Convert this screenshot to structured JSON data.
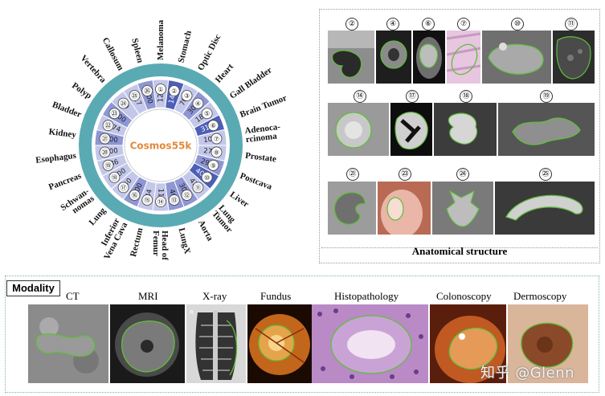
{
  "wheel": {
    "center_label": "Cosmos55k",
    "colors": {
      "ring": "#5aaab4",
      "dark": "#4d5fb7",
      "mid": "#8e96d3",
      "light": "#c3c7ea",
      "center_text": "#e28a3a"
    },
    "segments": [
      {
        "num": "①",
        "name": "Melanoma",
        "count": "1213",
        "shade": "light"
      },
      {
        "num": "②",
        "name": "Stomach",
        "count": "1400",
        "shade": "dark"
      },
      {
        "num": "③",
        "name": "Optic Disc",
        "count": "709",
        "shade": "light"
      },
      {
        "num": "④",
        "name": "Heart",
        "count": "3000",
        "shade": "mid"
      },
      {
        "num": "⑤",
        "name": "Gall Bladder",
        "count": "1874",
        "shade": "light"
      },
      {
        "num": "⑥",
        "name": "Brain Tumor",
        "count": "3100",
        "shade": "dark"
      },
      {
        "num": "⑦",
        "name": "Adenoca-\nrcinoma",
        "count": "1019",
        "shade": "light"
      },
      {
        "num": "⑧",
        "name": "Prostate",
        "count": "2747",
        "shade": "light"
      },
      {
        "num": "⑨",
        "name": "Postcava",
        "count": "2956",
        "shade": "mid"
      },
      {
        "num": "⑩",
        "name": "Liver",
        "count": "4000",
        "shade": "dark"
      },
      {
        "num": "⑪",
        "name": "Lung\nTumor",
        "count": "434",
        "shade": "light"
      },
      {
        "num": "⑫",
        "name": "Aorta",
        "count": "3000",
        "shade": "mid"
      },
      {
        "num": "⑬",
        "name": "LungX",
        "count": "465",
        "shade": "mid"
      },
      {
        "num": "⑭",
        "name": "Head of\nFemur",
        "count": "1195",
        "shade": "light"
      },
      {
        "num": "⑮",
        "name": "Rectum",
        "count": "884",
        "shade": "light"
      },
      {
        "num": "⑯",
        "name": "Inferior\nVena Cava",
        "count": "3000",
        "shade": "mid"
      },
      {
        "num": "⑰",
        "name": "Lung",
        "count": "550",
        "shade": "light"
      },
      {
        "num": "⑱",
        "name": "Schwan-\nnomas",
        "count": "3100",
        "shade": "light"
      },
      {
        "num": "⑲",
        "name": "Pancreas",
        "count": "286",
        "shade": "light"
      },
      {
        "num": "⑳",
        "name": "Esophagus",
        "count": "3100",
        "shade": "light"
      },
      {
        "num": "㉑",
        "name": "Kidney",
        "count": "3000",
        "shade": "mid"
      },
      {
        "num": "㉒",
        "name": "Bladder",
        "count": "2174",
        "shade": "light"
      },
      {
        "num": "㉓",
        "name": "Polyp",
        "count": "1000",
        "shade": "mid"
      },
      {
        "num": "㉔",
        "name": "Vertebra",
        "count": "9",
        "shade": "light"
      },
      {
        "num": "㉕",
        "name": "Callosum",
        "count": "117",
        "shade": "light"
      },
      {
        "num": "㉖",
        "name": "Spleen",
        "count": "3000",
        "shade": "mid"
      }
    ]
  },
  "anatomy_panel": {
    "title": "Anatomical structure",
    "thumbnails": [
      {
        "num": "②",
        "icon": "stomach-scan"
      },
      {
        "num": "④",
        "icon": "heart-scan"
      },
      {
        "num": "⑥",
        "icon": "brain-scan"
      },
      {
        "num": "⑦",
        "icon": "histology-scan"
      },
      {
        "num": "⑩",
        "icon": "liver-scan"
      },
      {
        "num": "⑪",
        "icon": "lung-tumor-scan"
      },
      {
        "num": "⑭",
        "icon": "femur-scan"
      },
      {
        "num": "⑰",
        "icon": "lung-scan"
      },
      {
        "num": "⑱",
        "icon": "schwannoma-scan"
      },
      {
        "num": "⑲",
        "icon": "pancreas-scan"
      },
      {
        "num": "㉑",
        "icon": "kidney-scan"
      },
      {
        "num": "㉓",
        "icon": "polyp-endoscopy"
      },
      {
        "num": "㉔",
        "icon": "vertebra-scan"
      },
      {
        "num": "㉕",
        "icon": "callosum-scan"
      }
    ]
  },
  "modality_panel": {
    "title": "Modality",
    "modalities": [
      {
        "label": "CT",
        "icon": "ct-image"
      },
      {
        "label": "MRI",
        "icon": "mri-image"
      },
      {
        "label": "X-ray",
        "icon": "xray-image"
      },
      {
        "label": "Fundus",
        "icon": "fundus-image"
      },
      {
        "label": "Histopathology",
        "icon": "histopathology-image"
      },
      {
        "label": "Colonoscopy",
        "icon": "colonoscopy-image"
      },
      {
        "label": "Dermoscopy",
        "icon": "dermoscopy-image"
      }
    ]
  },
  "watermark": "知乎 @Glenn"
}
